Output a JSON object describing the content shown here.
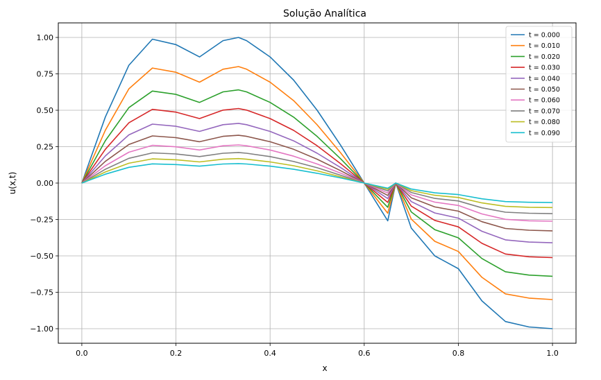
{
  "chart_data": {
    "type": "line",
    "title": "Solução Analítica",
    "xlabel": "x",
    "ylabel": "u(x,t)",
    "xlim": [
      -0.05,
      1.05
    ],
    "ylim": [
      -1.1,
      1.1
    ],
    "xticks": [
      0.0,
      0.2,
      0.4,
      0.6,
      0.8,
      1.0
    ],
    "xtick_labels": [
      "0.0",
      "0.2",
      "0.4",
      "0.6",
      "0.8",
      "1.0"
    ],
    "yticks": [
      1.0,
      0.75,
      0.5,
      0.25,
      0.0,
      -0.25,
      -0.5,
      -0.75,
      -1.0
    ],
    "ytick_labels": [
      "1.00",
      "0.75",
      "0.50",
      "0.25",
      "0.00",
      "−0.25",
      "−0.50",
      "−0.75",
      "−1.00"
    ],
    "grid": true,
    "legend_position": "top-right",
    "x": [
      0.0,
      0.05,
      0.1,
      0.15,
      0.2,
      0.25,
      0.3,
      0.333,
      0.35,
      0.4,
      0.45,
      0.5,
      0.55,
      0.6,
      0.65,
      0.667,
      0.7,
      0.75,
      0.8,
      0.85,
      0.9,
      0.95,
      1.0
    ],
    "series": [
      {
        "name": "t = 0.000",
        "color": "#1f77b4",
        "values": [
          0.0,
          0.454,
          0.809,
          0.988,
          0.951,
          0.866,
          0.978,
          1.0,
          0.978,
          0.866,
          0.707,
          0.5,
          0.259,
          0.0,
          -0.259,
          -0.0,
          -0.309,
          -0.5,
          -0.588,
          -0.809,
          -0.951,
          -0.988,
          -1.0
        ]
      },
      {
        "name": "t = 0.010",
        "color": "#ff7f0e",
        "values": [
          0.0,
          0.363,
          0.647,
          0.79,
          0.761,
          0.693,
          0.782,
          0.8,
          0.782,
          0.693,
          0.566,
          0.4,
          0.207,
          0.0,
          -0.207,
          0.0,
          -0.247,
          -0.4,
          -0.47,
          -0.647,
          -0.761,
          -0.79,
          -0.8
        ]
      },
      {
        "name": "t = 0.020",
        "color": "#2ca02c",
        "values": [
          0.0,
          0.291,
          0.518,
          0.632,
          0.609,
          0.554,
          0.626,
          0.64,
          0.626,
          0.554,
          0.453,
          0.32,
          0.166,
          0.0,
          -0.166,
          0.0,
          -0.198,
          -0.32,
          -0.376,
          -0.518,
          -0.609,
          -0.632,
          -0.64
        ]
      },
      {
        "name": "t = 0.030",
        "color": "#d62728",
        "values": [
          0.0,
          0.232,
          0.414,
          0.506,
          0.487,
          0.443,
          0.501,
          0.512,
          0.501,
          0.443,
          0.362,
          0.256,
          0.133,
          0.0,
          -0.133,
          0.0,
          -0.158,
          -0.256,
          -0.301,
          -0.414,
          -0.487,
          -0.506,
          -0.512
        ]
      },
      {
        "name": "t = 0.040",
        "color": "#9467bd",
        "values": [
          0.0,
          0.186,
          0.331,
          0.405,
          0.39,
          0.355,
          0.401,
          0.41,
          0.401,
          0.355,
          0.29,
          0.205,
          0.106,
          0.0,
          -0.106,
          0.0,
          -0.127,
          -0.205,
          -0.241,
          -0.331,
          -0.39,
          -0.405,
          -0.41
        ]
      },
      {
        "name": "t = 0.050",
        "color": "#8c564b",
        "values": [
          0.0,
          0.149,
          0.265,
          0.324,
          0.312,
          0.284,
          0.321,
          0.328,
          0.321,
          0.284,
          0.232,
          0.164,
          0.085,
          0.0,
          -0.085,
          0.0,
          -0.101,
          -0.164,
          -0.193,
          -0.265,
          -0.312,
          -0.324,
          -0.328
        ]
      },
      {
        "name": "t = 0.060",
        "color": "#e377c2",
        "values": [
          0.0,
          0.119,
          0.212,
          0.259,
          0.249,
          0.227,
          0.256,
          0.262,
          0.256,
          0.227,
          0.185,
          0.131,
          0.068,
          0.0,
          -0.068,
          0.0,
          -0.081,
          -0.131,
          -0.154,
          -0.212,
          -0.249,
          -0.259,
          -0.262
        ]
      },
      {
        "name": "t = 0.070",
        "color": "#7f7f7f",
        "values": [
          0.0,
          0.095,
          0.17,
          0.207,
          0.2,
          0.182,
          0.205,
          0.21,
          0.205,
          0.182,
          0.148,
          0.105,
          0.054,
          0.0,
          -0.054,
          0.0,
          -0.065,
          -0.105,
          -0.123,
          -0.17,
          -0.2,
          -0.207,
          -0.21
        ]
      },
      {
        "name": "t = 0.080",
        "color": "#bcbd22",
        "values": [
          0.0,
          0.076,
          0.136,
          0.166,
          0.16,
          0.145,
          0.164,
          0.168,
          0.164,
          0.145,
          0.119,
          0.084,
          0.043,
          0.0,
          -0.043,
          0.0,
          -0.052,
          -0.084,
          -0.099,
          -0.136,
          -0.16,
          -0.166,
          -0.168
        ]
      },
      {
        "name": "t = 0.090",
        "color": "#17becf",
        "values": [
          0.0,
          0.061,
          0.108,
          0.132,
          0.127,
          0.116,
          0.131,
          0.134,
          0.131,
          0.116,
          0.095,
          0.067,
          0.035,
          0.0,
          -0.035,
          0.0,
          -0.041,
          -0.067,
          -0.079,
          -0.108,
          -0.127,
          -0.132,
          -0.134
        ]
      }
    ]
  }
}
